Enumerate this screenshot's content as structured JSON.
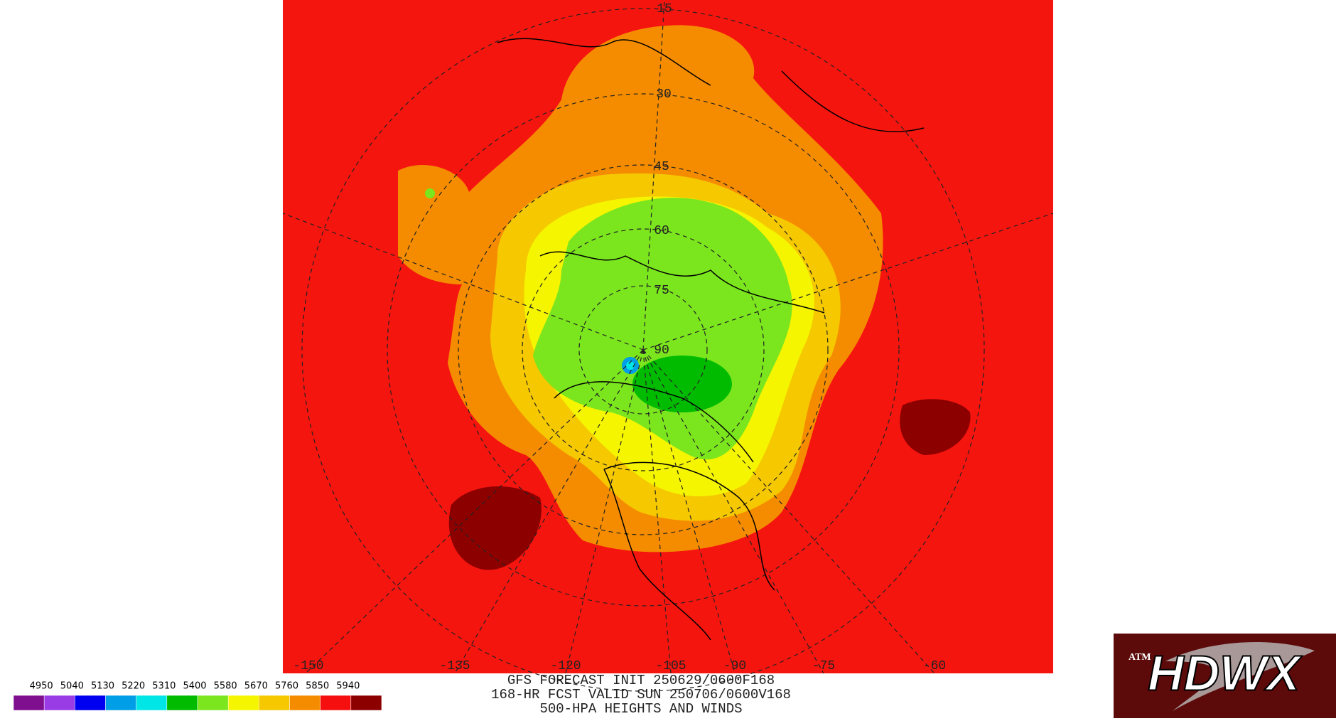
{
  "map": {
    "latitude_labels": [
      "15",
      "30",
      "45",
      "60",
      "75",
      "90"
    ],
    "longitude_labels": [
      "-150",
      "-135",
      "-120",
      "-105",
      "-90",
      "-75",
      "-60"
    ]
  },
  "colorbar": {
    "levels": [
      4950,
      5040,
      5130,
      5220,
      5310,
      5400,
      5580,
      5670,
      5760,
      5850,
      5940
    ],
    "colors": [
      "#7f0f8f",
      "#9a3ce6",
      "#0000f0",
      "#009ee6",
      "#00e6e6",
      "#00bb00",
      "#7be61e",
      "#f5f500",
      "#f5c800",
      "#f58c00",
      "#f50f0f",
      "#8c0000"
    ]
  },
  "caption": {
    "line1": "GFS FORECAST INIT 250629/0600F168",
    "line2": "168-HR FCST VALID SUN 250706/0600V168",
    "line3": "500-HPA HEIGHTS AND WINDS"
  },
  "logo": {
    "seal": "ATM",
    "text": "HDWX"
  }
}
